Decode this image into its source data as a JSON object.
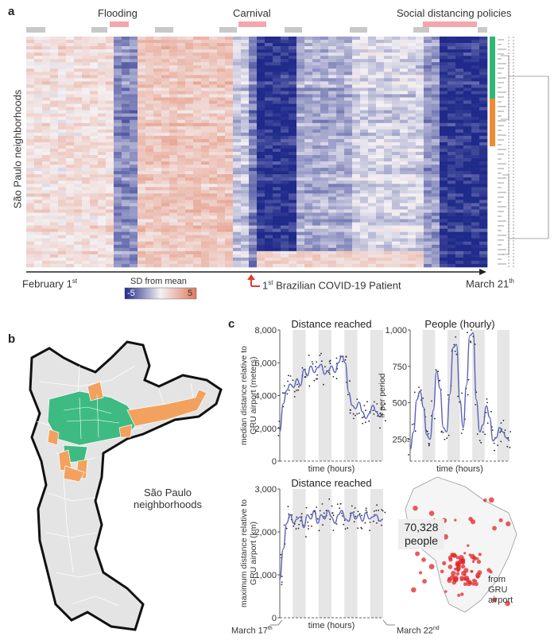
{
  "panel_a": {
    "letter": "a",
    "events": {
      "flooding": "Flooding",
      "carnival": "Carnival",
      "social": "Social distancing policies"
    },
    "ylabel": "São Paulo neighborhoods",
    "start": "February 1",
    "start_sup": "st",
    "end": "March 21",
    "end_sup": "th",
    "patient_prefix": "1",
    "patient_sup": "st",
    "patient_label": " Brazilian COVID-19 Patient",
    "legend_title": "SD from mean",
    "legend_min": "-5",
    "legend_max": "5",
    "colors": {
      "low": "#1f2a8a",
      "mid": "#f4f1f4",
      "high": "#e0795a",
      "green": "#2eb873",
      "orange": "#f08a33",
      "event": "#f4a6ad",
      "tick": "#c8c8c8"
    }
  },
  "panel_b": {
    "letter": "b",
    "label_line1": "São Paulo",
    "label_line2": "neighborhoods",
    "colors": {
      "land": "#e6e6e6",
      "green": "#3dbb82",
      "orange": "#f2a15e",
      "border": "#111111"
    }
  },
  "panel_c": {
    "letter": "c",
    "start_label": "March 17",
    "start_sup": "th",
    "end_label": "March 22",
    "end_sup": "nd",
    "map_count": "70,328",
    "map_unit": "people",
    "map_note_1": "from",
    "map_note_2": "GRU",
    "map_note_3": "airport"
  },
  "chart_data": [
    {
      "type": "line",
      "title": "Distance reached",
      "xlabel": "time (hours)",
      "ylabel": "median distance relative to GRU airport (meters)",
      "yticks": [
        "0",
        "2,000",
        "4,000",
        "6,000",
        "8,000"
      ],
      "ylim": [
        0,
        8000
      ],
      "x": [
        0,
        4,
        8,
        12,
        16,
        20,
        24,
        28,
        32,
        36,
        40,
        44,
        48,
        52,
        56,
        60,
        64,
        68,
        72,
        76,
        80,
        84,
        88,
        92,
        96,
        100,
        104,
        108,
        112,
        116,
        120
      ],
      "series": [
        {
          "values": [
            1800,
            3500,
            4300,
            4700,
            4500,
            5000,
            4600,
            5600,
            5200,
            5800,
            5400,
            5700,
            5900,
            5300,
            5500,
            5800,
            5400,
            6000,
            6400,
            6000,
            4200,
            3400,
            3200,
            3600,
            3000,
            2600,
            2900,
            3400,
            3000,
            2700,
            2900
          ]
        }
      ],
      "grid": "vertical bands"
    },
    {
      "type": "line",
      "title": "People (hourly)",
      "xlabel": "time (hours)",
      "ylabel": "# per period",
      "yticks": [
        "250",
        "500",
        "750",
        "1,000"
      ],
      "ylim": [
        100,
        1000
      ],
      "x": [
        0,
        4,
        8,
        12,
        16,
        20,
        24,
        28,
        32,
        36,
        40,
        44,
        48,
        52,
        56,
        60,
        64,
        68,
        72,
        76,
        80,
        84,
        88,
        92,
        96,
        100,
        104,
        108,
        112,
        116,
        120
      ],
      "series": [
        {
          "values": [
            180,
            300,
            520,
            580,
            470,
            280,
            250,
            450,
            720,
            600,
            330,
            300,
            560,
            880,
            900,
            520,
            330,
            620,
            960,
            980,
            520,
            300,
            350,
            480,
            400,
            240,
            260,
            330,
            300,
            260,
            240
          ]
        }
      ],
      "grid": "vertical bands"
    },
    {
      "type": "line",
      "title": "Distance reached",
      "xlabel": "time (hours)",
      "ylabel": "maximum distance relative to GRU airport (km)",
      "yticks": [
        "0",
        "1,000",
        "2,000",
        "3,000"
      ],
      "ylim": [
        0,
        3000
      ],
      "x": [
        0,
        4,
        8,
        12,
        16,
        20,
        24,
        28,
        32,
        36,
        40,
        44,
        48,
        52,
        56,
        60,
        64,
        68,
        72,
        76,
        80,
        84,
        88,
        92,
        96,
        100,
        104,
        108,
        112,
        116,
        120
      ],
      "series": [
        {
          "values": [
            900,
            1600,
            2200,
            2400,
            2200,
            2300,
            2350,
            2100,
            2400,
            2300,
            2500,
            2200,
            2400,
            2300,
            2500,
            2350,
            2200,
            2400,
            2500,
            2300,
            2250,
            2450,
            2300,
            2400,
            2250,
            2450,
            2300,
            2350,
            2400,
            2250,
            2300
          ]
        }
      ],
      "grid": "vertical bands"
    }
  ]
}
